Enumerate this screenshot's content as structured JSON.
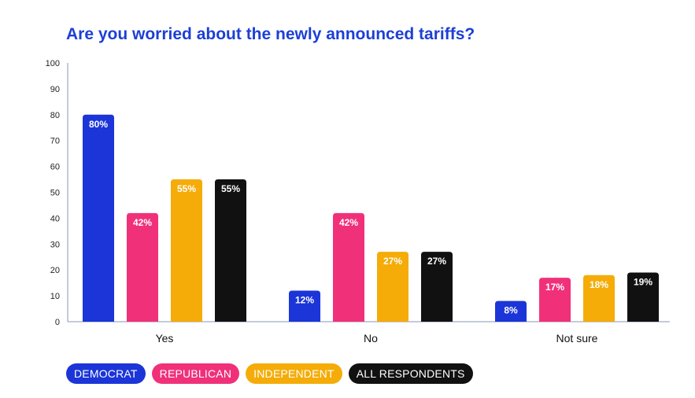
{
  "chart_data": {
    "type": "bar",
    "title": "Are you worried about the newly announced tariffs?",
    "xlabel": "",
    "ylabel": "",
    "ylim": [
      0,
      100
    ],
    "yticks": [
      0,
      10,
      20,
      30,
      40,
      50,
      60,
      70,
      80,
      90,
      100
    ],
    "categories": [
      "Yes",
      "No",
      "Not sure"
    ],
    "series": [
      {
        "name": "DEMOCRAT",
        "color": "#1b35d8",
        "values": [
          80,
          12,
          8
        ],
        "labels": [
          "80%",
          "12%",
          "8%"
        ]
      },
      {
        "name": "REPUBLICAN",
        "color": "#f0317a",
        "values": [
          42,
          42,
          17
        ],
        "labels": [
          "42%",
          "42%",
          "17%"
        ]
      },
      {
        "name": "INDEPENDENT",
        "color": "#f5ac08",
        "values": [
          55,
          27,
          18
        ],
        "labels": [
          "55%",
          "27%",
          "18%"
        ]
      },
      {
        "name": "ALL RESPONDENTS",
        "color": "#111111",
        "values": [
          55,
          27,
          19
        ],
        "labels": [
          "55%",
          "27%",
          "19%"
        ]
      }
    ],
    "legend_position": "bottom-left"
  }
}
